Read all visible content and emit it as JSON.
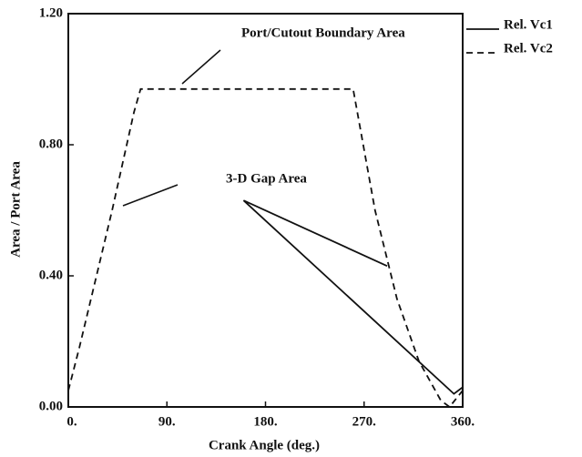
{
  "chart_data": {
    "type": "line",
    "xlabel": "Crank Angle (deg.)",
    "ylabel": "Area / Port Area",
    "annotations": [
      "Port/Cutout Boundary Area",
      "3-D Gap Area"
    ],
    "xlim": [
      0,
      360
    ],
    "ylim": [
      0,
      1.2
    ],
    "xticks": [
      {
        "value": 0,
        "label": "0."
      },
      {
        "value": 90,
        "label": "90."
      },
      {
        "value": 180,
        "label": "180."
      },
      {
        "value": 270,
        "label": "270."
      },
      {
        "value": 360,
        "label": "360."
      }
    ],
    "yticks": [
      {
        "value": 0,
        "label": "0.00"
      },
      {
        "value": 0.4,
        "label": "0.40"
      },
      {
        "value": 0.8,
        "label": "0.80"
      },
      {
        "value": 1.2,
        "label": "1.20"
      }
    ],
    "series": [
      {
        "name": "Rel. Vc1",
        "color": "#111111",
        "dash": "solid",
        "x": [
          291,
          160,
          352,
          360
        ],
        "values": [
          0.43,
          0.63,
          0.04,
          0.06
        ]
      },
      {
        "name": "Rel. Vc2",
        "color": "#111111",
        "dash": "dashed",
        "x": [
          0,
          10,
          20,
          30,
          40,
          50,
          60,
          66,
          260,
          280,
          300,
          320,
          340,
          348,
          360
        ],
        "values": [
          0.05,
          0.18,
          0.32,
          0.46,
          0.6,
          0.75,
          0.9,
          0.97,
          0.97,
          0.6,
          0.33,
          0.14,
          0.02,
          0.0,
          0.05
        ]
      }
    ],
    "legend": "right-top"
  }
}
